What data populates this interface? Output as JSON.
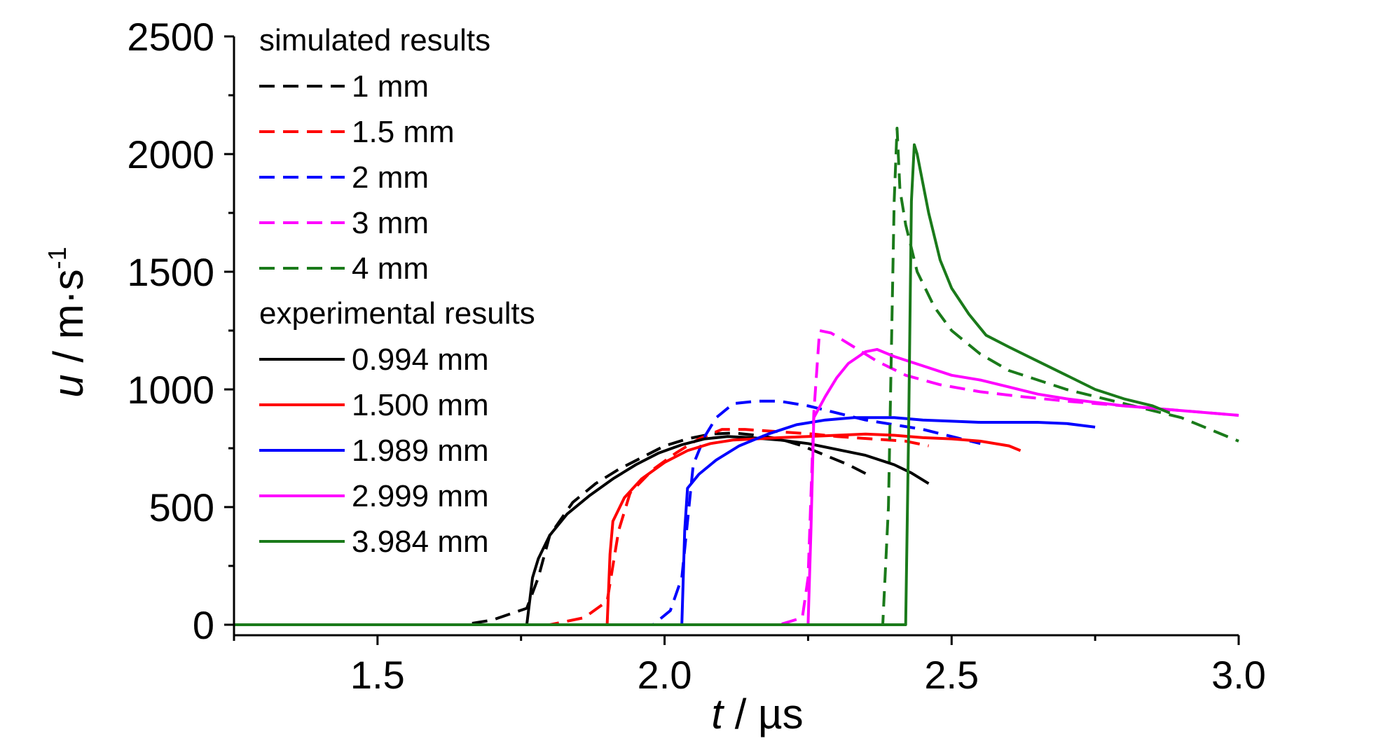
{
  "chart_data": {
    "type": "line",
    "title": "",
    "xlabel": {
      "var": "t",
      "unit": " / µs"
    },
    "ylabel": {
      "var": "u",
      "unit": " / m·s",
      "sup": "-1"
    },
    "xlim": [
      1.25,
      3.0
    ],
    "ylim": [
      0,
      2500
    ],
    "x_ticks": [
      "1.5",
      "2.0",
      "2.5",
      "3.0"
    ],
    "y_ticks": [
      "0",
      "500",
      "1000",
      "1500",
      "2000",
      "2500"
    ],
    "grid": false,
    "legend_position": "top-left",
    "legend_groups": [
      {
        "header": "simulated results",
        "style": "dashed",
        "entries": [
          "1 mm",
          "1.5 mm",
          "2 mm",
          "3 mm",
          "4 mm"
        ]
      },
      {
        "header": "experimental results",
        "style": "solid",
        "entries": [
          "0.994 mm",
          "1.500 mm",
          "1.989 mm",
          "2.999 mm",
          "3.984 mm"
        ]
      }
    ],
    "series": [
      {
        "name": "1 mm",
        "style": "dashed",
        "color": "#000000",
        "x": [
          1.25,
          1.65,
          1.7,
          1.76,
          1.78,
          1.8,
          1.84,
          1.88,
          1.92,
          1.96,
          2.0,
          2.04,
          2.08,
          2.12,
          2.16,
          2.2,
          2.24,
          2.28,
          2.32,
          2.36
        ],
        "y": [
          0,
          0,
          20,
          70,
          200,
          380,
          520,
          600,
          660,
          710,
          760,
          790,
          810,
          815,
          805,
          790,
          760,
          720,
          680,
          630
        ]
      },
      {
        "name": "1.5 mm",
        "style": "dashed",
        "color": "#ff0000",
        "x": [
          1.25,
          1.8,
          1.86,
          1.9,
          1.92,
          1.94,
          1.98,
          2.02,
          2.06,
          2.1,
          2.14,
          2.2,
          2.26,
          2.3,
          2.36,
          2.42,
          2.46
        ],
        "y": [
          0,
          0,
          30,
          100,
          400,
          560,
          660,
          730,
          790,
          830,
          830,
          820,
          810,
          800,
          790,
          780,
          760
        ]
      },
      {
        "name": "2 mm",
        "style": "dashed",
        "color": "#0000ff",
        "x": [
          1.25,
          1.98,
          2.01,
          2.03,
          2.05,
          2.07,
          2.09,
          2.12,
          2.16,
          2.2,
          2.25,
          2.3,
          2.35,
          2.4,
          2.45,
          2.5,
          2.55
        ],
        "y": [
          0,
          0,
          60,
          200,
          680,
          800,
          880,
          940,
          950,
          950,
          930,
          900,
          870,
          850,
          830,
          800,
          770
        ]
      },
      {
        "name": "3 mm",
        "style": "dashed",
        "color": "#ff00ff",
        "x": [
          1.25,
          2.2,
          2.24,
          2.25,
          2.26,
          2.27,
          2.29,
          2.33,
          2.37,
          2.42,
          2.48,
          2.55,
          2.62,
          2.7,
          2.8,
          2.9,
          3.0
        ],
        "y": [
          0,
          0,
          30,
          200,
          900,
          1250,
          1240,
          1180,
          1120,
          1060,
          1020,
          990,
          970,
          950,
          930,
          910,
          890
        ]
      },
      {
        "name": "4 mm",
        "style": "dashed",
        "color": "#1a7a1a",
        "x": [
          1.25,
          2.38,
          2.39,
          2.4,
          2.405,
          2.41,
          2.42,
          2.44,
          2.47,
          2.5,
          2.55,
          2.6,
          2.7,
          2.8,
          2.9,
          3.0
        ],
        "y": [
          0,
          0,
          500,
          1800,
          2110,
          1850,
          1700,
          1500,
          1350,
          1250,
          1150,
          1080,
          1000,
          940,
          880,
          780
        ]
      },
      {
        "name": "0.994 mm",
        "style": "solid",
        "color": "#000000",
        "x": [
          1.25,
          1.76,
          1.77,
          1.78,
          1.8,
          1.83,
          1.87,
          1.91,
          1.95,
          1.99,
          2.03,
          2.07,
          2.11,
          2.15,
          2.2,
          2.25,
          2.3,
          2.35,
          2.4,
          2.43,
          2.46
        ],
        "y": [
          0,
          0,
          200,
          280,
          380,
          470,
          550,
          620,
          680,
          730,
          765,
          790,
          800,
          795,
          785,
          770,
          745,
          720,
          680,
          645,
          600
        ]
      },
      {
        "name": "1.500 mm",
        "style": "solid",
        "color": "#ff0000",
        "x": [
          1.25,
          1.9,
          1.905,
          1.91,
          1.93,
          1.96,
          2.0,
          2.04,
          2.08,
          2.12,
          2.16,
          2.2,
          2.25,
          2.3,
          2.35,
          2.4,
          2.45,
          2.5,
          2.55,
          2.6,
          2.62
        ],
        "y": [
          0,
          0,
          300,
          440,
          540,
          620,
          690,
          740,
          770,
          785,
          790,
          795,
          800,
          805,
          810,
          805,
          795,
          790,
          780,
          760,
          740
        ]
      },
      {
        "name": "1.989 mm",
        "style": "solid",
        "color": "#0000ff",
        "x": [
          1.25,
          2.03,
          2.035,
          2.04,
          2.06,
          2.09,
          2.13,
          2.18,
          2.23,
          2.28,
          2.33,
          2.4,
          2.45,
          2.5,
          2.55,
          2.6,
          2.65,
          2.7,
          2.75
        ],
        "y": [
          0,
          0,
          400,
          580,
          640,
          700,
          760,
          810,
          850,
          870,
          880,
          880,
          870,
          865,
          860,
          860,
          860,
          855,
          840
        ]
      },
      {
        "name": "2.999 mm",
        "style": "solid",
        "color": "#ff00ff",
        "x": [
          1.25,
          2.25,
          2.255,
          2.26,
          2.28,
          2.3,
          2.32,
          2.35,
          2.37,
          2.4,
          2.45,
          2.5,
          2.55,
          2.6,
          2.65,
          2.7,
          2.8,
          2.9,
          3.0
        ],
        "y": [
          0,
          0,
          400,
          880,
          970,
          1050,
          1110,
          1160,
          1170,
          1140,
          1100,
          1060,
          1040,
          1010,
          980,
          960,
          930,
          910,
          890
        ]
      },
      {
        "name": "3.984 mm",
        "style": "solid",
        "color": "#1a7a1a",
        "x": [
          1.25,
          2.42,
          2.425,
          2.43,
          2.435,
          2.44,
          2.46,
          2.48,
          2.5,
          2.53,
          2.56,
          2.6,
          2.65,
          2.7,
          2.75,
          2.8,
          2.85,
          2.88
        ],
        "y": [
          0,
          0,
          800,
          1800,
          2040,
          2000,
          1750,
          1550,
          1430,
          1320,
          1230,
          1180,
          1120,
          1060,
          1000,
          960,
          930,
          900
        ]
      }
    ]
  }
}
